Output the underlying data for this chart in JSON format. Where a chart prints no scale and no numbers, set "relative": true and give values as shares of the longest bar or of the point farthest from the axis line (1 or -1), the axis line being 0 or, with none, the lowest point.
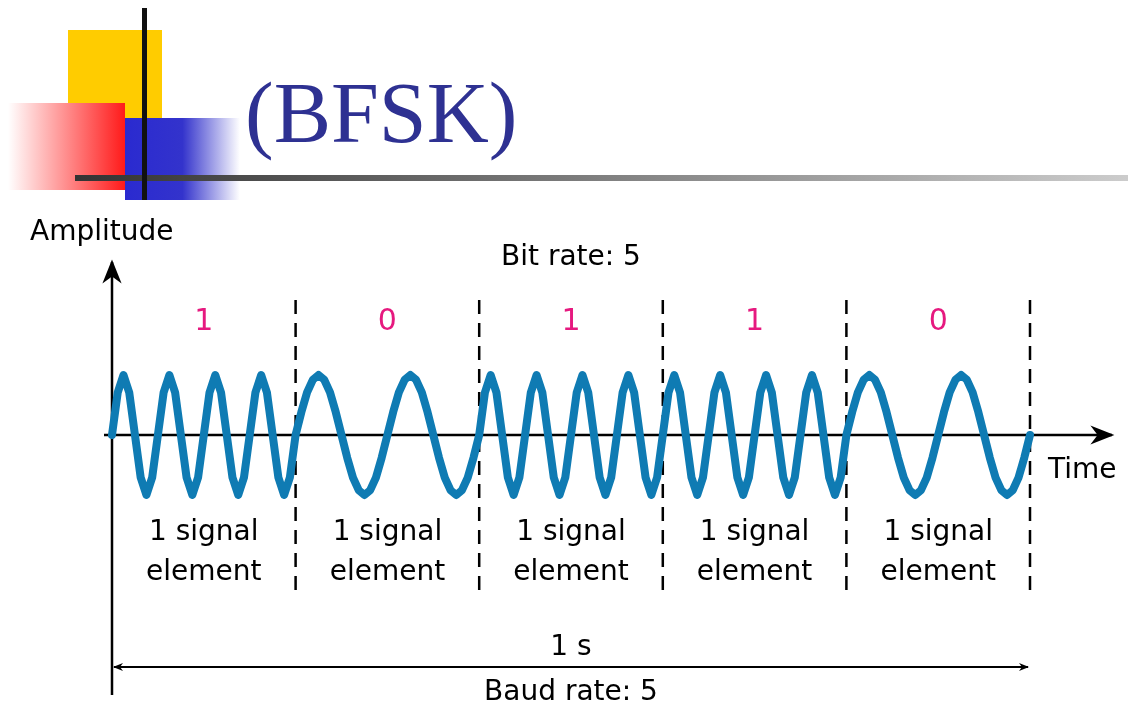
{
  "chart_data": {
    "type": "line",
    "title": "(BFSK)",
    "xlabel": "Time",
    "ylabel": "Amplitude",
    "relative": true,
    "categories": [
      null,
      null,
      null,
      null,
      null,
      null,
      null,
      null,
      null,
      null,
      null,
      null,
      null,
      null,
      null,
      null,
      null,
      null,
      null,
      null,
      null,
      null,
      null,
      null,
      null,
      null,
      null,
      null,
      null,
      null,
      null,
      null,
      null,
      null,
      null,
      null,
      null,
      null,
      null,
      null,
      null,
      null,
      null,
      null,
      null,
      null,
      null,
      null,
      null,
      null,
      null,
      null,
      null,
      null,
      null,
      null,
      null,
      null,
      null,
      null,
      null,
      null,
      null,
      null,
      null,
      null,
      null,
      null,
      null,
      null,
      null,
      null,
      null,
      null,
      null,
      null,
      null,
      null,
      null,
      null,
      null,
      null,
      null,
      null,
      null,
      null,
      null,
      null,
      null,
      null,
      null,
      null,
      null,
      null,
      null,
      null,
      null,
      null,
      null,
      null,
      null,
      null,
      null,
      null,
      null,
      null,
      null,
      null,
      null,
      null,
      null,
      null,
      null,
      null,
      null,
      null,
      null,
      null,
      null,
      null,
      null,
      null,
      null,
      null,
      null,
      null,
      null,
      null,
      null,
      null,
      null,
      null,
      null,
      null,
      null,
      null,
      null,
      null,
      null,
      null,
      null,
      null,
      null,
      null,
      null,
      null,
      null,
      null,
      null,
      null,
      null,
      null,
      null,
      null,
      null,
      null,
      null,
      null,
      null,
      null,
      null
    ],
    "series": [
      {
        "color": "#0f7bb3",
        "values": [
          0,
          0.71,
          1,
          0.71,
          0,
          -0.71,
          -1,
          -0.71,
          0,
          0.71,
          1,
          0.71,
          0,
          -0.71,
          -1,
          -0.71,
          0,
          0.71,
          1,
          0.71,
          0,
          -0.71,
          -1,
          -0.71,
          0,
          0.71,
          1,
          0.71,
          0,
          -0.71,
          -1,
          -0.71,
          0,
          0.38,
          0.71,
          0.92,
          1,
          0.92,
          0.71,
          0.38,
          0,
          -0.38,
          -0.71,
          -0.92,
          -1,
          -0.92,
          -0.71,
          -0.38,
          0,
          0.38,
          0.71,
          0.92,
          1,
          0.92,
          0.71,
          0.38,
          0,
          -0.38,
          -0.71,
          -0.92,
          -1,
          -0.92,
          -0.71,
          -0.38,
          0,
          0.71,
          1,
          0.71,
          0,
          -0.71,
          -1,
          -0.71,
          0,
          0.71,
          1,
          0.71,
          0,
          -0.71,
          -1,
          -0.71,
          0,
          0.71,
          1,
          0.71,
          0,
          -0.71,
          -1,
          -0.71,
          0,
          0.71,
          1,
          0.71,
          0,
          -0.71,
          -1,
          -0.71,
          0,
          0.71,
          1,
          0.71,
          0,
          -0.71,
          -1,
          -0.71,
          0,
          0.71,
          1,
          0.71,
          0,
          -0.71,
          -1,
          -0.71,
          0,
          0.71,
          1,
          0.71,
          0,
          -0.71,
          -1,
          -0.71,
          0,
          0.71,
          1,
          0.71,
          0,
          -0.71,
          -1,
          -0.71,
          0,
          0.38,
          0.71,
          0.92,
          1,
          0.92,
          0.71,
          0.38,
          0,
          -0.38,
          -0.71,
          -0.92,
          -1,
          -0.92,
          -0.71,
          -0.38,
          0,
          0.38,
          0.71,
          0.92,
          1,
          0.92,
          0.71,
          0.38,
          0,
          -0.38,
          -0.71,
          -0.92,
          -1,
          -0.92,
          -0.71,
          -0.38,
          0
        ]
      }
    ],
    "annotations": [
      "1",
      "0",
      "1",
      "1",
      "0",
      "1 signal element",
      "1 signal element",
      "1 signal element",
      "1 signal element",
      "1 signal element",
      "Bit rate: 5",
      "1 s",
      "Baud rate: 5"
    ]
  }
}
